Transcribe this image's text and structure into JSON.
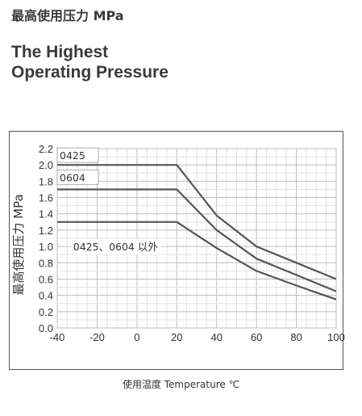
{
  "header": {
    "title_cn": "最高使用压力 MPa",
    "title_en_line1": "The Highest",
    "title_en_line2": "Operating Pressure"
  },
  "chart_data": {
    "type": "line",
    "title": "",
    "xlabel": "使用温度 Temperature ℃",
    "ylabel": "最高使用压力 MPa",
    "xlim": [
      -40,
      100
    ],
    "ylim": [
      0.0,
      2.2
    ],
    "xticks": [
      "-40",
      "-20",
      "0",
      "20",
      "40",
      "60",
      "80",
      "100"
    ],
    "yticks": [
      "0.0",
      "0.2",
      "0.4",
      "0.6",
      "0.8",
      "1.0",
      "1.2",
      "1.4",
      "1.6",
      "1.8",
      "2.0",
      "2.2"
    ],
    "grid": true,
    "annotations": [
      "0425",
      "0604",
      "0425、0604 以外"
    ],
    "series": [
      {
        "name": "0425",
        "color": "#555555",
        "points": [
          [
            -40,
            2.0
          ],
          [
            20,
            2.0
          ],
          [
            40,
            1.38
          ],
          [
            60,
            1.0
          ],
          [
            80,
            0.8
          ],
          [
            100,
            0.6
          ]
        ]
      },
      {
        "name": "0604",
        "color": "#555555",
        "points": [
          [
            -40,
            1.7
          ],
          [
            20,
            1.7
          ],
          [
            40,
            1.2
          ],
          [
            60,
            0.85
          ],
          [
            80,
            0.65
          ],
          [
            100,
            0.45
          ]
        ]
      },
      {
        "name": "0425、0604 以外",
        "color": "#555555",
        "points": [
          [
            -40,
            1.3
          ],
          [
            20,
            1.3
          ],
          [
            40,
            0.98
          ],
          [
            60,
            0.7
          ],
          [
            80,
            0.52
          ],
          [
            100,
            0.35
          ]
        ]
      }
    ]
  }
}
